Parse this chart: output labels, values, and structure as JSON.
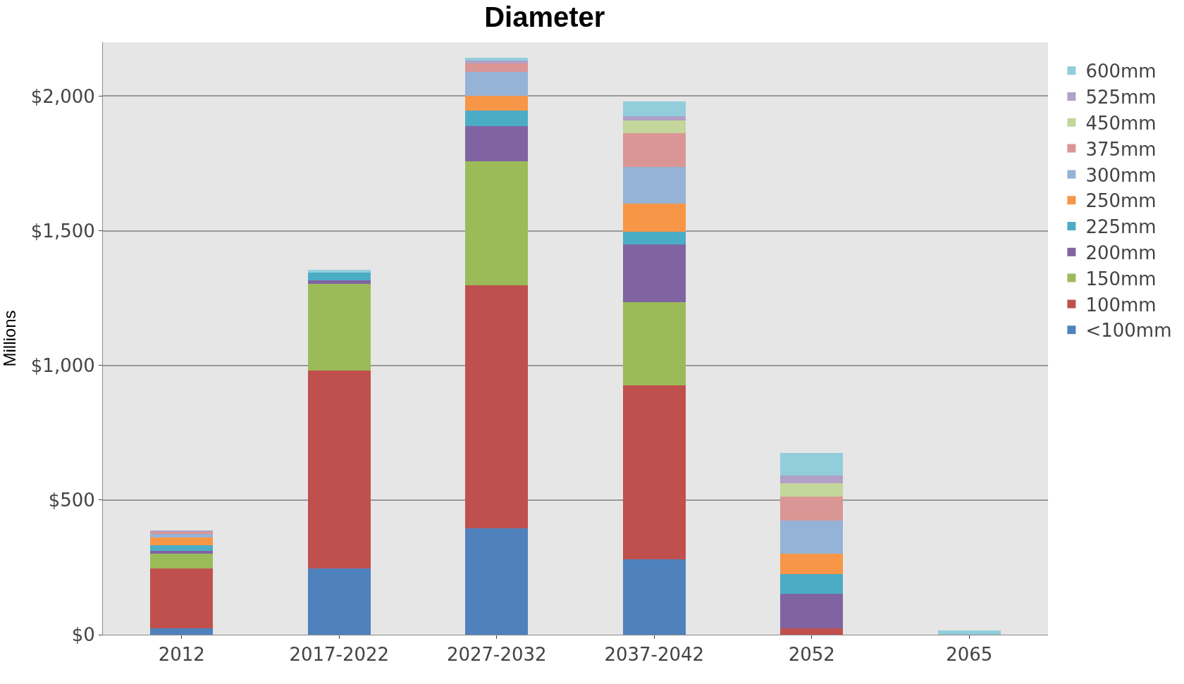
{
  "chart_data": {
    "type": "bar",
    "title": "Diameter",
    "ylabel": "Millions",
    "stacked": true,
    "categories": [
      "2012",
      "2017-2022",
      "2027-2032",
      "2037-2042",
      "2052",
      "2065"
    ],
    "ylim": [
      0,
      2200
    ],
    "yticks": [
      {
        "value": 0,
        "label": "$0"
      },
      {
        "value": 500,
        "label": "$500"
      },
      {
        "value": 1000,
        "label": "$1,000"
      },
      {
        "value": 1500,
        "label": "$1,500"
      },
      {
        "value": 2000,
        "label": "$2,000"
      }
    ],
    "grid": "y",
    "legend": "right",
    "series": [
      {
        "name": "<100mm",
        "color": "#4f81bd",
        "values": [
          24,
          246,
          396,
          280,
          0,
          0
        ]
      },
      {
        "name": "100mm",
        "color": "#c0504d",
        "values": [
          222,
          735,
          902,
          645,
          24,
          0
        ]
      },
      {
        "name": "150mm",
        "color": "#9bbb59",
        "values": [
          54,
          323,
          461,
          309,
          0,
          0
        ]
      },
      {
        "name": "200mm",
        "color": "#8064a2",
        "values": [
          12,
          11,
          129,
          214,
          127,
          0
        ]
      },
      {
        "name": "225mm",
        "color": "#4bacc6",
        "values": [
          21,
          30,
          58,
          49,
          74,
          0
        ]
      },
      {
        "name": "250mm",
        "color": "#f79646",
        "values": [
          28,
          0,
          54,
          103,
          75,
          0
        ]
      },
      {
        "name": "300mm",
        "color": "#95b3d7",
        "values": [
          13,
          0,
          90,
          136,
          123,
          0
        ]
      },
      {
        "name": "375mm",
        "color": "#da9694",
        "values": [
          9,
          0,
          32,
          127,
          91,
          0
        ]
      },
      {
        "name": "450mm",
        "color": "#c3d69b",
        "values": [
          0,
          0,
          0,
          46,
          49,
          0
        ]
      },
      {
        "name": "525mm",
        "color": "#b1a0c7",
        "values": [
          3,
          0,
          10,
          16,
          29,
          0
        ]
      },
      {
        "name": "600mm",
        "color": "#92cddc",
        "values": [
          0,
          10,
          11,
          54,
          82,
          15
        ]
      }
    ]
  }
}
